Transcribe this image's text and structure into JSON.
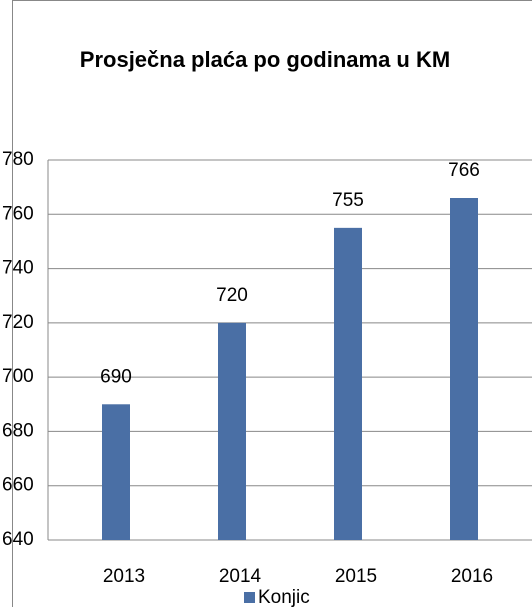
{
  "chart_data": {
    "type": "bar",
    "title": "Prosječna plaća po godinama u KM",
    "categories": [
      "2013",
      "2014",
      "2015",
      "2016"
    ],
    "series": [
      {
        "name": "Konjic",
        "color": "#4a6fa5",
        "values": [
          690,
          720,
          755,
          766
        ]
      }
    ],
    "ylim": [
      640,
      780
    ],
    "yticks": [
      640,
      660,
      680,
      700,
      720,
      740,
      760,
      780
    ],
    "grid": true,
    "legend": "bottom"
  }
}
